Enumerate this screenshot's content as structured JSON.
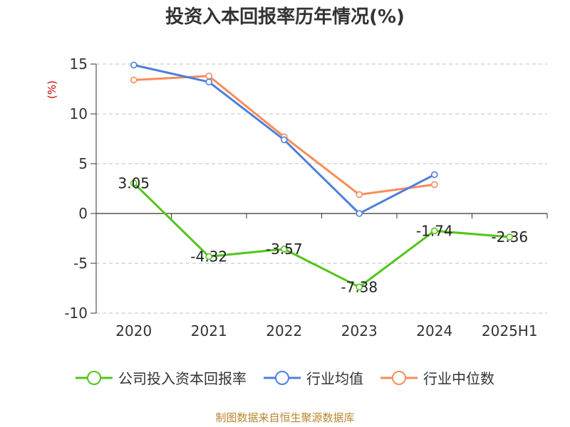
{
  "chart_data": {
    "type": "line",
    "title": "投资入本回报率历年情况(%)",
    "ylabel": "(%)",
    "xlabel": "",
    "categories": [
      "2020",
      "2021",
      "2022",
      "2023",
      "2024",
      "2025H1"
    ],
    "ylim": [
      -10,
      15
    ],
    "yticks": [
      15,
      10,
      5,
      0,
      -5,
      -10
    ],
    "grid": true,
    "legend_position": "bottom",
    "series": [
      {
        "name": "公司投入资本回报率",
        "color": "#52c41a",
        "values": [
          3.05,
          -4.32,
          -3.57,
          -7.38,
          -1.74,
          -2.36
        ],
        "labels": [
          "3.05",
          "-4.32",
          "-3.57",
          "-7.38",
          "-1.74",
          "-2.36"
        ]
      },
      {
        "name": "行业均值",
        "color": "#4f7fdc",
        "values": [
          14.9,
          13.2,
          7.4,
          0.0,
          3.9,
          null
        ]
      },
      {
        "name": "行业中位数",
        "color": "#f78c5a",
        "values": [
          13.4,
          13.8,
          7.7,
          1.9,
          2.9,
          null
        ]
      }
    ]
  },
  "source": "制图数据来自恒生聚源数据库",
  "colors": {
    "ylabel": "#cc0000",
    "grid": "#cccccc",
    "axis": "#333333",
    "text": "#333333"
  }
}
